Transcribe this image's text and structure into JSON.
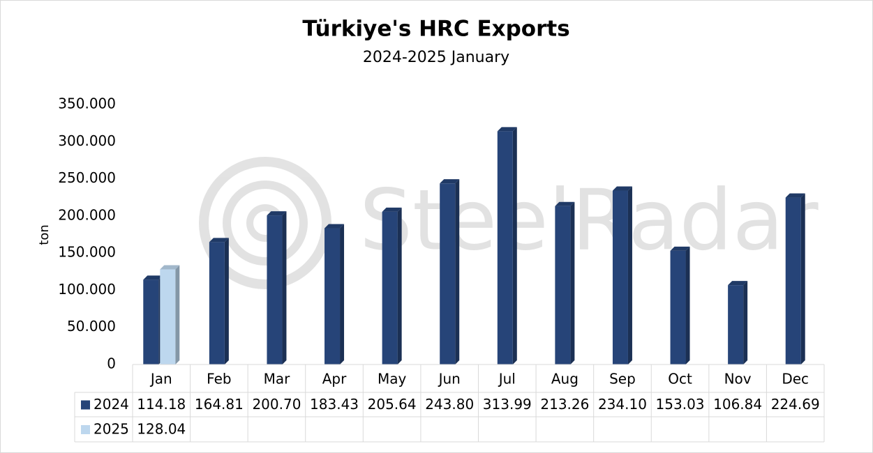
{
  "chart_data": {
    "type": "bar",
    "title": "Türkiye's HRC Exports",
    "subtitle": "2024-2025 January",
    "y_label": "ton",
    "watermark": "SteelRadar",
    "categories": [
      "Jan",
      "Feb",
      "Mar",
      "Apr",
      "May",
      "Jun",
      "Jul",
      "Aug",
      "Sep",
      "Oct",
      "Nov",
      "Dec"
    ],
    "series": [
      {
        "name": "2024",
        "color": "#264478",
        "values": [
          114180,
          164810,
          200700,
          183430,
          205640,
          243800,
          313990,
          213260,
          234100,
          153030,
          106840,
          224690
        ],
        "value_labels": [
          "114.18",
          "164.81",
          "200.70",
          "183.43",
          "205.64",
          "243.80",
          "313.99",
          "213.26",
          "234.10",
          "153.03",
          "106.84",
          "224.69"
        ]
      },
      {
        "name": "2025",
        "color": "#bdd7ee",
        "values": [
          128040,
          null,
          null,
          null,
          null,
          null,
          null,
          null,
          null,
          null,
          null,
          null
        ],
        "value_labels": [
          "128.04",
          null,
          null,
          null,
          null,
          null,
          null,
          null,
          null,
          null,
          null,
          null
        ]
      }
    ],
    "ylim": [
      0,
      350000
    ],
    "yticks": [
      0,
      {
        "value": 50000,
        "label": "50.000"
      },
      {
        "value": 100000,
        "label": "100.000"
      },
      {
        "value": 150000,
        "label": "150.000"
      },
      {
        "value": 200000,
        "label": "200.000"
      },
      {
        "value": 250000,
        "label": "250.000"
      },
      {
        "value": 300000,
        "label": "300.000"
      },
      {
        "value": 350000,
        "label": "350.000"
      }
    ],
    "grid": false,
    "data_table": true
  }
}
